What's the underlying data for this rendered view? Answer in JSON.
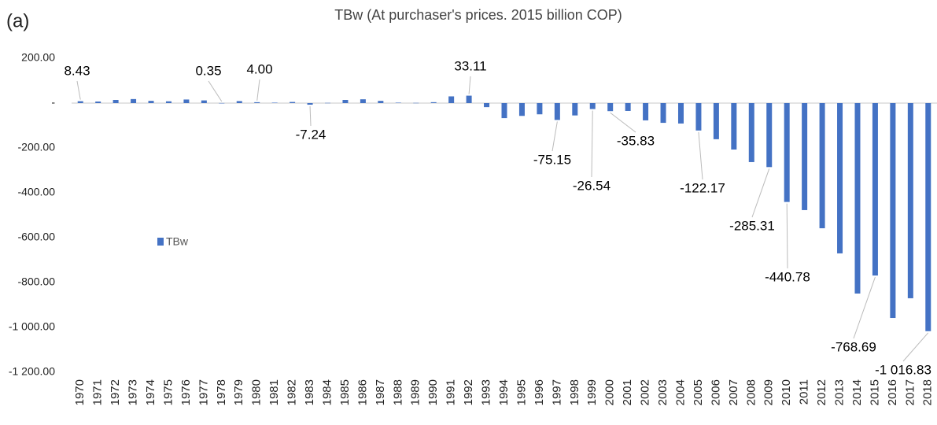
{
  "chart_data": {
    "type": "bar",
    "panel_label": "(a)",
    "title": "TBw  (At purchaser's prices. 2015 billion COP)",
    "categories": [
      "1970",
      "1971",
      "1972",
      "1973",
      "1974",
      "1975",
      "1976",
      "1977",
      "1978",
      "1979",
      "1980",
      "1981",
      "1982",
      "1983",
      "1984",
      "1985",
      "1986",
      "1987",
      "1988",
      "1989",
      "1990",
      "1991",
      "1992",
      "1993",
      "1994",
      "1995",
      "1996",
      "1997",
      "1998",
      "1999",
      "2000",
      "2001",
      "2002",
      "2003",
      "2004",
      "2005",
      "2006",
      "2007",
      "2008",
      "2009",
      "2010",
      "2011",
      "2012",
      "2013",
      "2014",
      "2015",
      "2016",
      "2017",
      "2018"
    ],
    "series": [
      {
        "name": "TBw",
        "color": "#4472c4",
        "values": [
          8.43,
          7,
          14,
          18,
          10,
          8,
          16,
          12,
          0.35,
          9,
          4.0,
          2,
          5,
          -7.24,
          1,
          14,
          17,
          10,
          2,
          1,
          4,
          30,
          33.11,
          -18,
          -67,
          -57,
          -50,
          -75.15,
          -55,
          -26.54,
          -35.83,
          -35,
          -77,
          -88,
          -91,
          -122.17,
          -161,
          -207,
          -263,
          -285.31,
          -440.78,
          -477,
          -558,
          -670,
          -849,
          -768.69,
          -958,
          -870,
          -1016.83
        ],
        "value_labels": [
          "8.43",
          null,
          null,
          null,
          null,
          null,
          null,
          null,
          "0.35",
          null,
          "4.00",
          null,
          null,
          "-7.24",
          null,
          null,
          null,
          null,
          null,
          null,
          null,
          null,
          "33.11",
          null,
          null,
          null,
          null,
          "-75.15",
          null,
          "-26.54",
          "-35.83",
          null,
          null,
          null,
          null,
          "-122.17",
          null,
          null,
          null,
          "-285.31",
          "-440.78",
          null,
          null,
          null,
          null,
          "-768.69",
          null,
          null,
          "-1 016.83"
        ]
      }
    ],
    "ylim": [
      -1200,
      200
    ],
    "yticks": [
      {
        "value": 200,
        "label": "200.00"
      },
      {
        "value": 0,
        "label": "-"
      },
      {
        "value": -200,
        "label": "-200.00"
      },
      {
        "value": -400,
        "label": "-400.00"
      },
      {
        "value": -600,
        "label": "-600.00"
      },
      {
        "value": -800,
        "label": "-800.00"
      },
      {
        "value": -1000,
        "label": "-1 000.00"
      },
      {
        "value": -1200,
        "label": "-1 200.00"
      }
    ],
    "grid": false,
    "legend": "left"
  }
}
